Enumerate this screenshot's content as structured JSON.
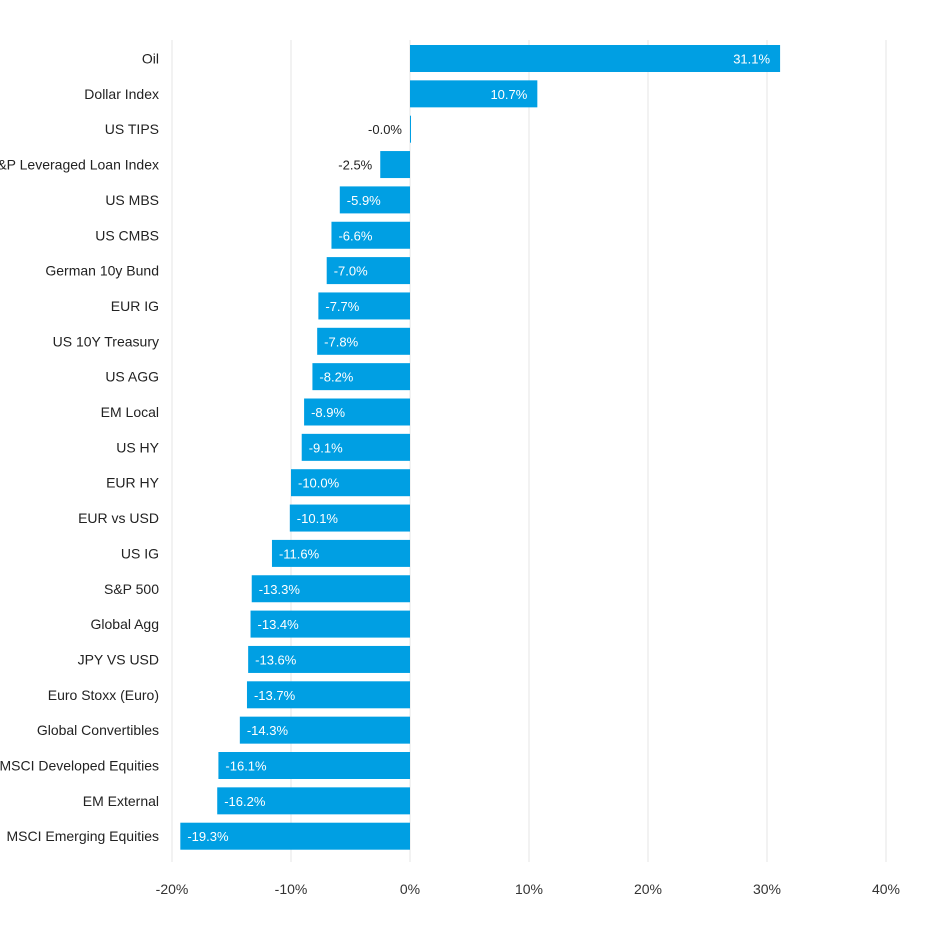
{
  "chart_data": {
    "type": "bar",
    "orientation": "horizontal",
    "categories": [
      "Oil",
      "Dollar Index",
      "US TIPS",
      "S&P Leveraged Loan Index",
      "US MBS",
      "US CMBS",
      "German 10y Bund",
      "EUR IG",
      "US 10Y Treasury",
      "US AGG",
      "EM Local",
      "US HY",
      "EUR HY",
      "EUR vs USD",
      "US IG",
      "S&P 500",
      "Global Agg",
      "JPY VS USD",
      "Euro Stoxx (Euro)",
      "Global Convertibles",
      "MSCI Developed Equities",
      "EM External",
      "MSCI Emerging Equities"
    ],
    "values": [
      31.1,
      10.7,
      -0.0,
      -2.5,
      -5.9,
      -6.6,
      -7.0,
      -7.7,
      -7.8,
      -8.2,
      -8.9,
      -9.1,
      -10.0,
      -10.1,
      -11.6,
      -13.3,
      -13.4,
      -13.6,
      -13.7,
      -14.3,
      -16.1,
      -16.2,
      -19.3
    ],
    "data_labels": [
      "31.1%",
      "10.7%",
      "-0.0%",
      "-2.5%",
      "-5.9%",
      "-6.6%",
      "-7.0%",
      "-7.7%",
      "-7.8%",
      "-8.2%",
      "-8.9%",
      "-9.1%",
      "-10.0%",
      "-10.1%",
      "-11.6%",
      "-13.3%",
      "-13.4%",
      "-13.6%",
      "-13.7%",
      "-14.3%",
      "-16.1%",
      "-16.2%",
      "-19.3%"
    ],
    "xlim": [
      -20,
      40
    ],
    "xticks": [
      -20,
      -10,
      0,
      10,
      20,
      30,
      40
    ],
    "xtick_labels": [
      "-20%",
      "-10%",
      "0%",
      "10%",
      "20%",
      "30%",
      "40%"
    ],
    "title": "",
    "xlabel": "",
    "ylabel": "",
    "grid": "vertical",
    "bar_color": "#009fe3",
    "grid_color": "#e6e6e6",
    "legend": "none"
  }
}
